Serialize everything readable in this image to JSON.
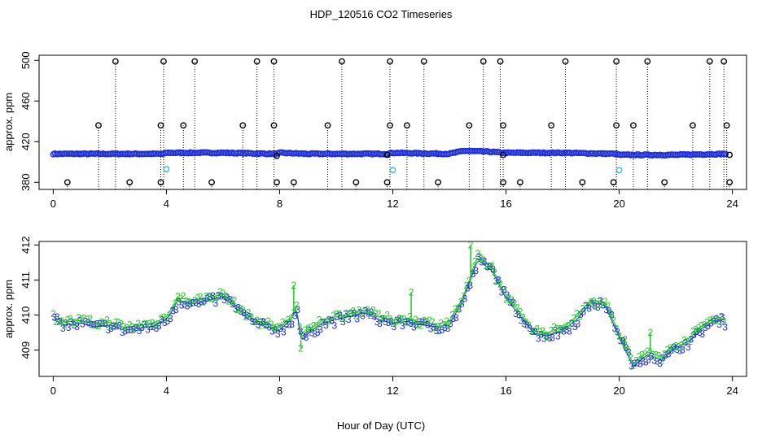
{
  "chart_data": [
    {
      "type": "scatter",
      "title": "HDP_120516  CO2 Timeseries",
      "ylabel": "approx. ppm",
      "xlim": [
        -0.5,
        24.5
      ],
      "ylim": [
        373,
        505
      ],
      "xticks": [
        "0",
        "4",
        "8",
        "12",
        "16",
        "20",
        "24"
      ],
      "yticks": [
        "380",
        "420",
        "460",
        "500"
      ],
      "ytick_values": [
        380,
        420,
        460,
        500
      ],
      "colors": {
        "main": "#1f2fd6",
        "outline": "#000000",
        "alt": "#22c5d2",
        "drop": "#000000"
      },
      "series_knots": {
        "x": [
          0,
          2,
          3.9,
          4,
          6,
          7.9,
          8,
          9,
          11.8,
          12,
          14,
          14.5,
          15.5,
          15.9,
          16,
          18,
          19.9,
          20,
          22,
          23.8
        ],
        "y": [
          408,
          408,
          408,
          409,
          409,
          408,
          409,
          408,
          408,
          409,
          408,
          411,
          410,
          409,
          409,
          409,
          408,
          407,
          407,
          408
        ]
      },
      "spikes_high": [
        2.2,
        3.9,
        5.0,
        7.2,
        7.8,
        10.2,
        11.9,
        13.1,
        15.2,
        15.8,
        18.1,
        19.9,
        21.0,
        23.2,
        23.7
      ],
      "spikes_mid": [
        1.6,
        3.8,
        4.6,
        6.7,
        7.8,
        9.7,
        11.9,
        12.5,
        14.7,
        15.9,
        17.6,
        19.9,
        20.5,
        22.6,
        23.8
      ],
      "spikes_low": [
        0.5,
        2.7,
        3.8,
        5.6,
        7.9,
        8.5,
        10.7,
        11.8,
        13.6,
        15.9,
        16.5,
        18.7,
        19.8,
        21.6,
        23.9
      ],
      "spike_values": {
        "high": 499,
        "mid": 436,
        "low": 380
      },
      "alt_points": [
        {
          "x": 4.0,
          "y": 393
        },
        {
          "x": 12.0,
          "y": 392
        },
        {
          "x": 20.0,
          "y": 392
        }
      ],
      "outline_points": [
        {
          "x": 7.9,
          "y": 406
        },
        {
          "x": 11.8,
          "y": 407
        },
        {
          "x": 15.9,
          "y": 407
        },
        {
          "x": 23.9,
          "y": 407
        }
      ]
    },
    {
      "type": "scatter",
      "title": "",
      "xlabel": "Hour of Day (UTC)",
      "ylabel": "approx. ppm",
      "xlim": [
        -0.5,
        24.5
      ],
      "ylim": [
        408.25,
        412.1
      ],
      "xticks": [
        "0",
        "4",
        "8",
        "12",
        "16",
        "20",
        "24"
      ],
      "yticks": [
        "409",
        "410",
        "411",
        "412"
      ],
      "ytick_values": [
        409,
        410,
        411,
        412
      ],
      "series": [
        {
          "name": "2",
          "symbol": "2",
          "color": "#22c922"
        },
        {
          "name": "3",
          "symbol": "3",
          "color": "#1f2fd6"
        }
      ],
      "series_knots": {
        "x": [
          0,
          0.4,
          1.0,
          1.5,
          2.0,
          2.5,
          3.0,
          3.5,
          4.0,
          4.4,
          5.0,
          5.5,
          6.0,
          6.5,
          7.0,
          7.5,
          8.0,
          8.4,
          8.6,
          8.75,
          9.0,
          9.5,
          10.0,
          10.5,
          11.0,
          11.5,
          12.0,
          12.5,
          13.0,
          13.5,
          14.0,
          14.5,
          15.0,
          15.5,
          16.0,
          16.5,
          17.0,
          17.5,
          18.0,
          18.5,
          19.0,
          19.5,
          20.0,
          20.5,
          21.0,
          21.5,
          22.0,
          22.5,
          23.0,
          23.5,
          23.8
        ],
        "y": [
          409.9,
          409.75,
          409.8,
          409.7,
          409.75,
          409.6,
          409.65,
          409.7,
          409.9,
          410.45,
          410.35,
          410.45,
          410.55,
          410.2,
          409.85,
          409.7,
          409.6,
          409.9,
          410.2,
          409.3,
          409.5,
          409.8,
          409.9,
          410.0,
          410.1,
          409.9,
          409.8,
          409.85,
          409.75,
          409.7,
          409.75,
          410.5,
          411.6,
          411.3,
          410.5,
          410.0,
          409.5,
          409.45,
          409.6,
          409.9,
          410.4,
          410.3,
          409.4,
          408.55,
          408.9,
          408.75,
          409.1,
          409.3,
          409.7,
          409.9,
          409.8
        ]
      },
      "spikes": [
        {
          "x": 8.5,
          "y": 410.85
        },
        {
          "x": 8.75,
          "y": 409.05
        },
        {
          "x": 12.65,
          "y": 410.65
        },
        {
          "x": 14.75,
          "y": 412.0
        },
        {
          "x": 20.2,
          "y": 409.3
        },
        {
          "x": 21.1,
          "y": 409.5
        }
      ]
    }
  ]
}
